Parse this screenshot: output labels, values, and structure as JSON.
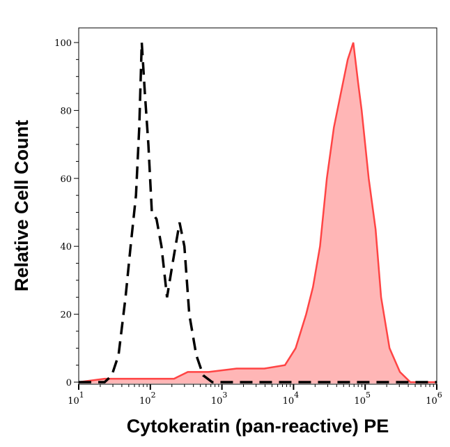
{
  "chart_data": {
    "type": "area",
    "title": "",
    "xlabel": "Cytokeratin (pan-reactive) PE",
    "ylabel": "Relative Cell Count",
    "xscale": "log",
    "xlim": [
      10,
      1000000
    ],
    "ylim": [
      0,
      105
    ],
    "x_ticks": [
      {
        "base": "10",
        "exp": "1"
      },
      {
        "base": "10",
        "exp": "2"
      },
      {
        "base": "10",
        "exp": "3"
      },
      {
        "base": "10",
        "exp": "4"
      },
      {
        "base": "10",
        "exp": "5"
      },
      {
        "base": "10",
        "exp": "6"
      }
    ],
    "y_ticks": [
      "0",
      "20",
      "40",
      "60",
      "80",
      "100"
    ],
    "grid": false,
    "series": [
      {
        "style": "dashed-line",
        "color": "#000000",
        "points": [
          [
            10,
            0
          ],
          [
            23,
            0
          ],
          [
            29,
            2
          ],
          [
            36,
            8
          ],
          [
            45,
            25
          ],
          [
            53,
            40
          ],
          [
            63,
            55
          ],
          [
            70,
            75
          ],
          [
            76,
            100
          ],
          [
            84,
            85
          ],
          [
            94,
            70
          ],
          [
            105,
            50
          ],
          [
            122,
            48
          ],
          [
            143,
            40
          ],
          [
            171,
            25
          ],
          [
            205,
            35
          ],
          [
            256,
            47
          ],
          [
            299,
            40
          ],
          [
            350,
            20
          ],
          [
            438,
            8
          ],
          [
            547,
            2
          ],
          [
            731,
            0
          ],
          [
            1000000,
            0
          ]
        ]
      },
      {
        "style": "filled",
        "color": "#ff4444",
        "fill": "#ffb6b6",
        "points": [
          [
            10,
            0
          ],
          [
            23,
            1
          ],
          [
            70,
            1
          ],
          [
            214,
            1
          ],
          [
            334,
            3
          ],
          [
            654,
            3
          ],
          [
            1600,
            4
          ],
          [
            3900,
            4
          ],
          [
            7600,
            5
          ],
          [
            10700,
            10
          ],
          [
            15000,
            20
          ],
          [
            18700,
            28
          ],
          [
            23400,
            40
          ],
          [
            29200,
            60
          ],
          [
            36600,
            75
          ],
          [
            45700,
            85
          ],
          [
            57100,
            95
          ],
          [
            68300,
            100
          ],
          [
            80000,
            88
          ],
          [
            89400,
            80
          ],
          [
            112000,
            60
          ],
          [
            140000,
            45
          ],
          [
            167000,
            25
          ],
          [
            219000,
            10
          ],
          [
            306000,
            3
          ],
          [
            428000,
            0
          ],
          [
            1000000,
            0
          ]
        ]
      }
    ]
  }
}
